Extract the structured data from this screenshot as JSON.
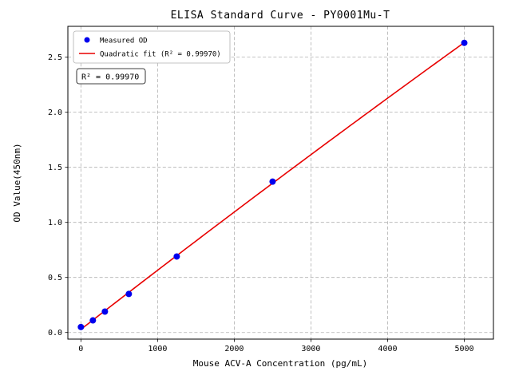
{
  "figure": {
    "title": "ELISA Standard Curve - PY0001Mu-T",
    "xlabel": "Mouse ACV-A Concentration (pg/mL)",
    "ylabel": "OD Value(450nm)",
    "annotation": "R² = 0.99970",
    "legend": {
      "measured": "Measured OD",
      "fit": "Quadratic fit (R² = 0.99970)"
    },
    "colors": {
      "points": "#0000ee",
      "line": "#e80000",
      "grid": "#b0b0b0"
    }
  },
  "chart_data": {
    "type": "scatter",
    "title": "ELISA Standard Curve - PY0001Mu-T",
    "xlabel": "Mouse ACV-A Concentration (pg/mL)",
    "ylabel": "OD Value(450nm)",
    "series": [
      {
        "name": "Measured OD",
        "type": "scatter",
        "x": [
          0,
          156,
          313,
          625,
          1250,
          2500,
          5000
        ],
        "y": [
          0.05,
          0.11,
          0.19,
          0.35,
          0.69,
          1.37,
          2.63
        ]
      },
      {
        "name": "Quadratic fit (R² = 0.99970)",
        "type": "line",
        "fit": "quadratic",
        "r_squared": 0.9997
      }
    ],
    "xlim": [
      -170,
      5380
    ],
    "ylim": [
      -0.06,
      2.78
    ],
    "xticks": [
      0,
      1000,
      2000,
      3000,
      4000,
      5000
    ],
    "yticks": [
      0,
      0.5,
      1,
      1.5,
      2,
      2.5
    ],
    "grid": true,
    "grid_style": "dashed",
    "legend_position": "upper left"
  }
}
